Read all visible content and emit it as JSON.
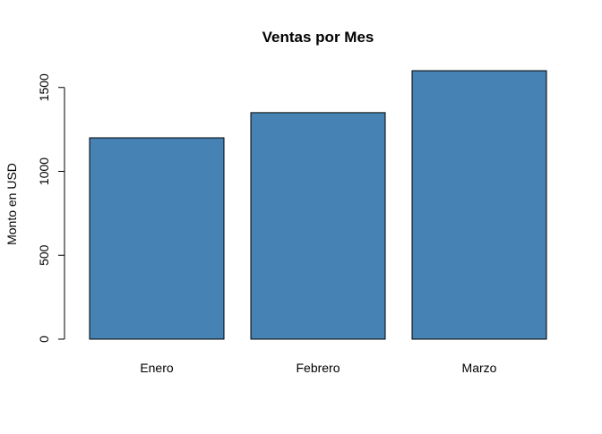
{
  "chart_data": {
    "type": "bar",
    "title": "Ventas por Mes",
    "xlabel": "",
    "ylabel": "Monto en USD",
    "categories": [
      "Enero",
      "Febrero",
      "Marzo"
    ],
    "values": [
      1200,
      1350,
      1600
    ],
    "yticks": [
      0,
      500,
      1000,
      1500
    ],
    "ytick_labels": [
      "0",
      "500",
      "1000",
      "1500"
    ],
    "ylim": [
      0,
      1600
    ],
    "grid": false,
    "legend": "none",
    "colors": {
      "bar_fill": "#4682B4",
      "bar_stroke": "#000000",
      "axis": "#000000"
    }
  }
}
